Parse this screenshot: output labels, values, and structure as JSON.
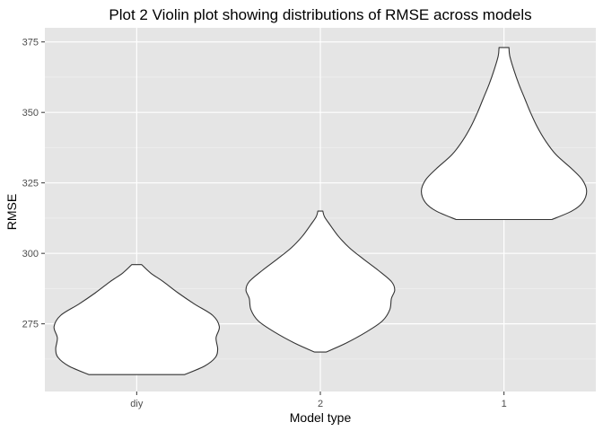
{
  "chart_data": {
    "type": "violin",
    "title": "Plot 2   Violin plot showing distributions of RMSE across models",
    "xlabel": "Model type",
    "ylabel": "RMSE",
    "categories": [
      "diy",
      "2",
      "1"
    ],
    "ylim": [
      251,
      380
    ],
    "y_ticks": [
      275,
      300,
      325,
      350,
      375
    ],
    "grid": true,
    "background": "#e5e5e5",
    "violin_fill": "#ffffff",
    "violin_stroke": "#333333",
    "violins": [
      {
        "name": "diy",
        "min": 257,
        "max": 296,
        "profile": [
          [
            257,
            0.58
          ],
          [
            260,
            0.82
          ],
          [
            263,
            0.95
          ],
          [
            266,
            0.98
          ],
          [
            270,
            0.96
          ],
          [
            274,
            1.0
          ],
          [
            278,
            0.92
          ],
          [
            282,
            0.7
          ],
          [
            286,
            0.5
          ],
          [
            290,
            0.32
          ],
          [
            293,
            0.17
          ],
          [
            296,
            0.06
          ]
        ]
      },
      {
        "name": "2",
        "min": 265,
        "max": 315,
        "profile": [
          [
            265,
            0.07
          ],
          [
            268,
            0.3
          ],
          [
            272,
            0.55
          ],
          [
            276,
            0.75
          ],
          [
            280,
            0.84
          ],
          [
            284,
            0.86
          ],
          [
            287,
            0.9
          ],
          [
            290,
            0.86
          ],
          [
            294,
            0.7
          ],
          [
            298,
            0.52
          ],
          [
            302,
            0.35
          ],
          [
            306,
            0.22
          ],
          [
            310,
            0.12
          ],
          [
            313,
            0.05
          ],
          [
            315,
            0.03
          ]
        ]
      },
      {
        "name": "1",
        "min": 312,
        "max": 373,
        "profile": [
          [
            312,
            0.58
          ],
          [
            315,
            0.82
          ],
          [
            318,
            0.95
          ],
          [
            322,
            1.0
          ],
          [
            326,
            0.95
          ],
          [
            330,
            0.82
          ],
          [
            335,
            0.63
          ],
          [
            340,
            0.5
          ],
          [
            345,
            0.4
          ],
          [
            350,
            0.32
          ],
          [
            355,
            0.25
          ],
          [
            360,
            0.18
          ],
          [
            365,
            0.12
          ],
          [
            370,
            0.07
          ],
          [
            373,
            0.06
          ]
        ]
      }
    ]
  }
}
